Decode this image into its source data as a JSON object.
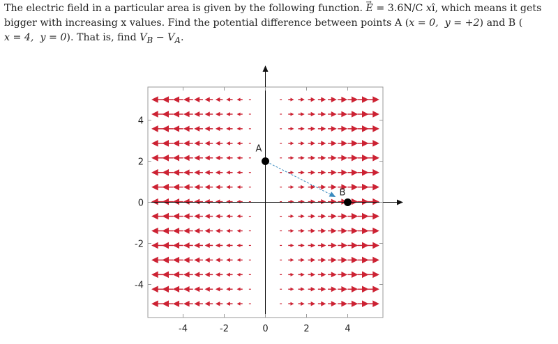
{
  "problem": {
    "line1_text": "The electric field in a particular area is given by the following function. ",
    "field_symbol": "E",
    "field_eq": " = 3.6N/C ",
    "field_var": "x",
    "field_unit": "î",
    "line1_tail": ", which means it gets",
    "line2_text": "bigger with increasing x values. Find the potential difference between points A (",
    "pointA_coords": "x = 0,  y = +2",
    "line2_mid": ") and B (",
    "pointB_coords": "x = 4,  y = 0",
    "line3_tail": "). That is, find ",
    "answer_expr": "V",
    "answer_sub_b": "B",
    "answer_minus": " − V",
    "answer_sub_a": "A",
    "answer_end": "."
  },
  "chart_data": {
    "type": "vector-field",
    "field_strength": 3.6,
    "field_direction": "x",
    "xlim": [
      -6,
      6
    ],
    "ylim": [
      -6,
      6
    ],
    "x_ticks": [
      "-4",
      "-2",
      "0",
      "2",
      "4"
    ],
    "y_ticks": [
      "4",
      "2",
      "0",
      "-2",
      "-4"
    ],
    "x_tick_values": [
      -4,
      -2,
      0,
      2,
      4
    ],
    "y_tick_values": [
      4,
      2,
      0,
      -2,
      -4
    ],
    "field_color": "#cc2233",
    "path_color": "#3a8bbf",
    "points": [
      {
        "label": "A",
        "x": 0,
        "y": 2
      },
      {
        "label": "B",
        "x": 4,
        "y": 0
      }
    ]
  }
}
